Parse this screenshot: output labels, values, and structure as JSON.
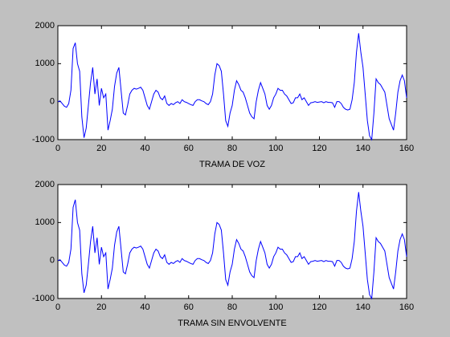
{
  "chart_data": [
    {
      "type": "line",
      "xlabel": "TRAMA DE VOZ",
      "x": [
        0,
        1,
        2,
        3,
        4,
        5,
        6,
        7,
        8,
        9,
        10,
        11,
        12,
        13,
        14,
        15,
        16,
        17,
        18,
        19,
        20,
        21,
        22,
        23,
        24,
        25,
        26,
        27,
        28,
        29,
        30,
        31,
        32,
        33,
        34,
        35,
        36,
        37,
        38,
        39,
        40,
        41,
        42,
        43,
        44,
        45,
        46,
        47,
        48,
        49,
        50,
        51,
        52,
        53,
        54,
        55,
        56,
        57,
        58,
        59,
        60,
        61,
        62,
        63,
        64,
        65,
        66,
        67,
        68,
        69,
        70,
        71,
        72,
        73,
        74,
        75,
        76,
        77,
        78,
        79,
        80,
        81,
        82,
        83,
        84,
        85,
        86,
        87,
        88,
        89,
        90,
        91,
        92,
        93,
        94,
        95,
        96,
        97,
        98,
        99,
        100,
        101,
        102,
        103,
        104,
        105,
        106,
        107,
        108,
        109,
        110,
        111,
        112,
        113,
        114,
        115,
        116,
        117,
        118,
        119,
        120,
        121,
        122,
        123,
        124,
        125,
        126,
        127,
        128,
        129,
        130,
        131,
        132,
        133,
        134,
        135,
        136,
        137,
        138,
        139,
        140,
        141,
        142,
        143,
        144,
        145,
        146,
        147,
        148,
        149,
        150,
        151,
        152,
        153,
        154,
        155,
        156,
        157,
        158,
        159,
        160
      ],
      "values": [
        0,
        20,
        -50,
        -120,
        -150,
        -50,
        300,
        1400,
        1550,
        1000,
        800,
        -400,
        -950,
        -700,
        -100,
        500,
        900,
        200,
        600,
        -100,
        350,
        100,
        200,
        -750,
        -500,
        -200,
        400,
        750,
        900,
        300,
        -300,
        -350,
        -100,
        200,
        300,
        350,
        330,
        350,
        380,
        300,
        100,
        -100,
        -200,
        0,
        200,
        300,
        250,
        100,
        50,
        150,
        -50,
        -100,
        -50,
        -80,
        -30,
        0,
        -50,
        50,
        0,
        -20,
        -50,
        -80,
        -100,
        0,
        50,
        50,
        20,
        0,
        -50,
        -80,
        0,
        200,
        700,
        1000,
        950,
        800,
        200,
        -500,
        -650,
        -300,
        -100,
        300,
        550,
        450,
        300,
        250,
        100,
        -100,
        -300,
        -400,
        -450,
        0,
        300,
        500,
        350,
        200,
        -100,
        -200,
        -100,
        100,
        200,
        350,
        300,
        300,
        200,
        150,
        50,
        -50,
        -30,
        100,
        100,
        200,
        50,
        100,
        0,
        -100,
        -30,
        -20,
        0,
        -20,
        -10,
        0,
        -30,
        0,
        -20,
        -20,
        -30,
        -150,
        0,
        0,
        -50,
        -150,
        -200,
        -220,
        -200,
        50,
        500,
        1300,
        1800,
        1300,
        900,
        200,
        -500,
        -900,
        -1000,
        -300,
        600,
        500,
        450,
        350,
        250,
        -100,
        -450,
        -600,
        -750,
        -300,
        250,
        550,
        700,
        550,
        100
      ],
      "color": "#0000ff",
      "xlim": [
        0,
        160
      ],
      "ylim": [
        -1000,
        2000
      ],
      "xticks": [
        0,
        20,
        40,
        60,
        80,
        100,
        120,
        140,
        160
      ],
      "yticks": [
        -1000,
        0,
        1000,
        2000
      ]
    },
    {
      "type": "line",
      "xlabel": "TRAMA SIN ENVOLVENTE",
      "x": [
        0,
        1,
        2,
        3,
        4,
        5,
        6,
        7,
        8,
        9,
        10,
        11,
        12,
        13,
        14,
        15,
        16,
        17,
        18,
        19,
        20,
        21,
        22,
        23,
        24,
        25,
        26,
        27,
        28,
        29,
        30,
        31,
        32,
        33,
        34,
        35,
        36,
        37,
        38,
        39,
        40,
        41,
        42,
        43,
        44,
        45,
        46,
        47,
        48,
        49,
        50,
        51,
        52,
        53,
        54,
        55,
        56,
        57,
        58,
        59,
        60,
        61,
        62,
        63,
        64,
        65,
        66,
        67,
        68,
        69,
        70,
        71,
        72,
        73,
        74,
        75,
        76,
        77,
        78,
        79,
        80,
        81,
        82,
        83,
        84,
        85,
        86,
        87,
        88,
        89,
        90,
        91,
        92,
        93,
        94,
        95,
        96,
        97,
        98,
        99,
        100,
        101,
        102,
        103,
        104,
        105,
        106,
        107,
        108,
        109,
        110,
        111,
        112,
        113,
        114,
        115,
        116,
        117,
        118,
        119,
        120,
        121,
        122,
        123,
        124,
        125,
        126,
        127,
        128,
        129,
        130,
        131,
        132,
        133,
        134,
        135,
        136,
        137,
        138,
        139,
        140,
        141,
        142,
        143,
        144,
        145,
        146,
        147,
        148,
        149,
        150,
        151,
        152,
        153,
        154,
        155,
        156,
        157,
        158,
        159,
        160
      ],
      "values": [
        0,
        20,
        -50,
        -120,
        -150,
        -50,
        300,
        1400,
        1600,
        1000,
        800,
        -350,
        -850,
        -650,
        -100,
        500,
        900,
        200,
        600,
        -100,
        350,
        100,
        200,
        -750,
        -500,
        -200,
        400,
        750,
        900,
        300,
        -300,
        -350,
        -100,
        200,
        300,
        350,
        330,
        350,
        380,
        300,
        100,
        -100,
        -200,
        0,
        200,
        300,
        250,
        100,
        50,
        150,
        -50,
        -100,
        -50,
        -80,
        -30,
        0,
        -50,
        50,
        0,
        -20,
        -50,
        -80,
        -100,
        0,
        50,
        50,
        20,
        0,
        -50,
        -80,
        0,
        200,
        700,
        1000,
        950,
        800,
        200,
        -500,
        -650,
        -300,
        -100,
        300,
        550,
        450,
        300,
        250,
        100,
        -100,
        -300,
        -400,
        -450,
        0,
        300,
        500,
        350,
        200,
        -100,
        -200,
        -100,
        100,
        200,
        350,
        300,
        300,
        200,
        150,
        50,
        -50,
        -30,
        100,
        100,
        200,
        50,
        100,
        0,
        -100,
        -30,
        -20,
        0,
        -20,
        -10,
        0,
        -30,
        0,
        -20,
        -20,
        -30,
        -150,
        0,
        0,
        -50,
        -150,
        -200,
        -220,
        -200,
        50,
        500,
        1300,
        1800,
        1300,
        900,
        200,
        -500,
        -900,
        -1000,
        -300,
        600,
        500,
        450,
        350,
        250,
        -100,
        -450,
        -600,
        -750,
        -300,
        250,
        550,
        700,
        550,
        100
      ],
      "color": "#0000ff",
      "xlim": [
        0,
        160
      ],
      "ylim": [
        -1000,
        2000
      ],
      "xticks": [
        0,
        20,
        40,
        60,
        80,
        100,
        120,
        140,
        160
      ],
      "yticks": [
        -1000,
        0,
        1000,
        2000
      ]
    }
  ]
}
